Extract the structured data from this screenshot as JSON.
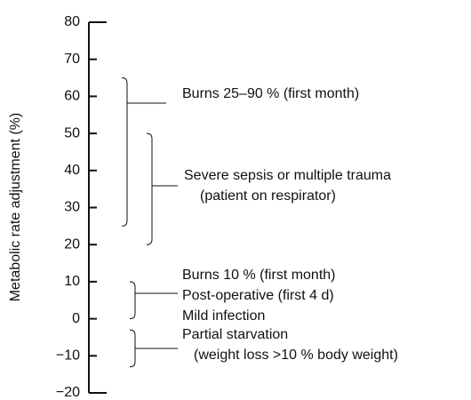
{
  "chart_data": {
    "type": "range",
    "y_label": "Metabolic rate adjustment (%)",
    "ylim": [
      -20,
      80
    ],
    "yticks": [
      {
        "value": -20,
        "label": "−20"
      },
      {
        "value": -10,
        "label": "−10"
      },
      0,
      10,
      20,
      30,
      40,
      50,
      60,
      70,
      80
    ],
    "ranges": [
      {
        "low": 25,
        "high": 65,
        "labels": [
          "Burns 25–90 % (first month)"
        ]
      },
      {
        "low": 20,
        "high": 50,
        "labels": [
          "Severe sepsis or multiple trauma",
          "(patient on respirator)"
        ]
      },
      {
        "low": 0,
        "high": 10,
        "labels": [
          "Burns 10 % (first month)",
          "Post-operative (first 4 d)",
          "Mild infection"
        ]
      },
      {
        "low": -13,
        "high": -3,
        "labels": [
          "Partial starvation",
          "(weight loss >10 % body weight)"
        ]
      }
    ]
  }
}
